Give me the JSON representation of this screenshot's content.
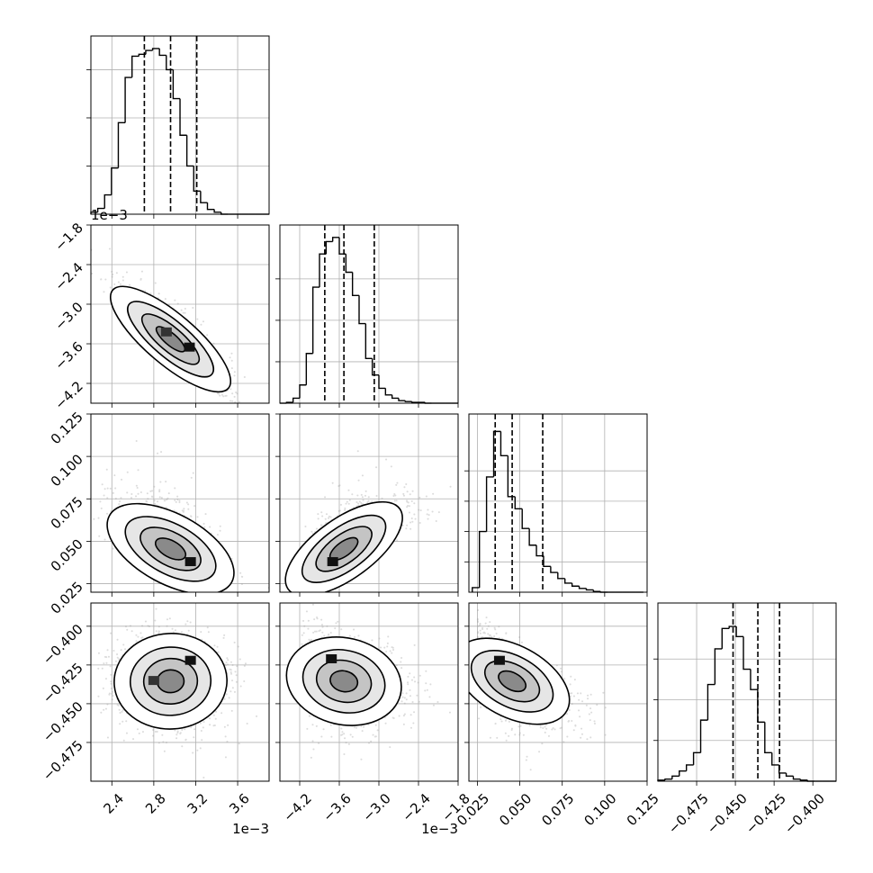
{
  "chart_data": {
    "type": "corner",
    "title": "",
    "n_params": 4,
    "panel_order": "lower-triangle",
    "grid": true,
    "params": [
      {
        "id": "p0",
        "range": [
          2.2,
          3.9
        ],
        "ticks": [
          2.4,
          2.8,
          3.2,
          3.6
        ],
        "tick_labels": [
          "2.4",
          "2.8",
          "3.2",
          "3.6"
        ],
        "offset_text": "1e−3",
        "quantiles": [
          2.71,
          2.96,
          3.21
        ],
        "histogram": {
          "bin_start": 2.2,
          "bin_width": 0.0654,
          "counts": [
            2,
            6,
            20,
            48,
            95,
            142,
            164,
            166,
            170,
            172,
            165,
            150,
            120,
            82,
            50,
            24,
            12,
            5,
            2,
            0,
            0,
            0,
            0,
            0,
            0,
            0
          ],
          "ylim": [
            0,
            185
          ],
          "yticks": [
            50,
            100,
            150
          ]
        }
      },
      {
        "id": "p1",
        "range": [
          -4.5,
          -1.8
        ],
        "ticks": [
          -4.2,
          -3.6,
          -3.0,
          -2.4,
          -1.8
        ],
        "tick_labels": [
          "−4.2",
          "−3.6",
          "−3.0",
          "−2.4",
          "−1.8"
        ],
        "offset_text": "1e−3",
        "quantiles": [
          -3.82,
          -3.53,
          -3.07
        ],
        "histogram": {
          "bin_start": -4.5,
          "bin_width": 0.1,
          "counts": [
            0,
            1,
            6,
            22,
            60,
            140,
            180,
            195,
            200,
            180,
            158,
            130,
            96,
            54,
            34,
            18,
            10,
            6,
            3,
            2,
            1,
            1,
            0,
            0,
            0,
            0,
            0
          ],
          "ylim": [
            0,
            215
          ],
          "yticks": [
            50,
            100,
            150
          ]
        }
      },
      {
        "id": "p2",
        "range": [
          0.02,
          0.125
        ],
        "ticks": [
          0.025,
          0.05,
          0.075,
          0.1,
          0.125
        ],
        "tick_labels": [
          "0.025",
          "0.050",
          "0.075",
          "0.100",
          "0.125"
        ],
        "quantiles": [
          0.0355,
          0.0455,
          0.0635
        ],
        "histogram": {
          "bin_start": 0.022,
          "bin_width": 0.0042,
          "counts": [
            6,
            80,
            152,
            212,
            180,
            126,
            110,
            84,
            62,
            48,
            34,
            26,
            18,
            12,
            8,
            5,
            3,
            1,
            0,
            0,
            0,
            0,
            0,
            0
          ],
          "ylim": [
            0,
            235
          ],
          "yticks": [
            40,
            80,
            120,
            160
          ]
        }
      },
      {
        "id": "p3",
        "range": [
          -0.5,
          -0.385
        ],
        "ticks": [
          -0.475,
          -0.45,
          -0.425,
          -0.4
        ],
        "tick_labels": [
          "−0.475",
          "−0.450",
          "−0.425",
          "−0.400"
        ],
        "quantiles": [
          -0.4515,
          -0.4355,
          -0.4215
        ],
        "histogram": {
          "bin_start": -0.5,
          "bin_width": 0.0046,
          "counts": [
            1,
            2,
            5,
            10,
            16,
            28,
            60,
            95,
            130,
            150,
            152,
            142,
            110,
            90,
            58,
            28,
            16,
            8,
            5,
            2,
            1,
            0,
            0,
            0,
            0
          ],
          "ylim": [
            0,
            175
          ],
          "yticks": [
            40,
            80,
            120
          ]
        }
      }
    ],
    "pair_stats": [
      {
        "row": 1,
        "col": 0,
        "rho": -0.9,
        "peak": [
          3.14,
          -3.65
        ],
        "peak2": [
          2.92,
          -3.42
        ]
      },
      {
        "row": 2,
        "col": 0,
        "rho": -0.6,
        "peak": [
          3.15,
          0.038
        ]
      },
      {
        "row": 2,
        "col": 1,
        "rho": 0.75,
        "peak": [
          -3.7,
          0.038
        ]
      },
      {
        "row": 3,
        "col": 0,
        "rho": 0.05,
        "peak": [
          3.15,
          -0.422
        ],
        "peak2": [
          2.8,
          -0.435
        ]
      },
      {
        "row": 3,
        "col": 1,
        "rho": -0.25,
        "peak": [
          -3.72,
          -0.421
        ]
      },
      {
        "row": 3,
        "col": 2,
        "rho": -0.55,
        "peak": [
          0.038,
          -0.422
        ]
      }
    ]
  }
}
